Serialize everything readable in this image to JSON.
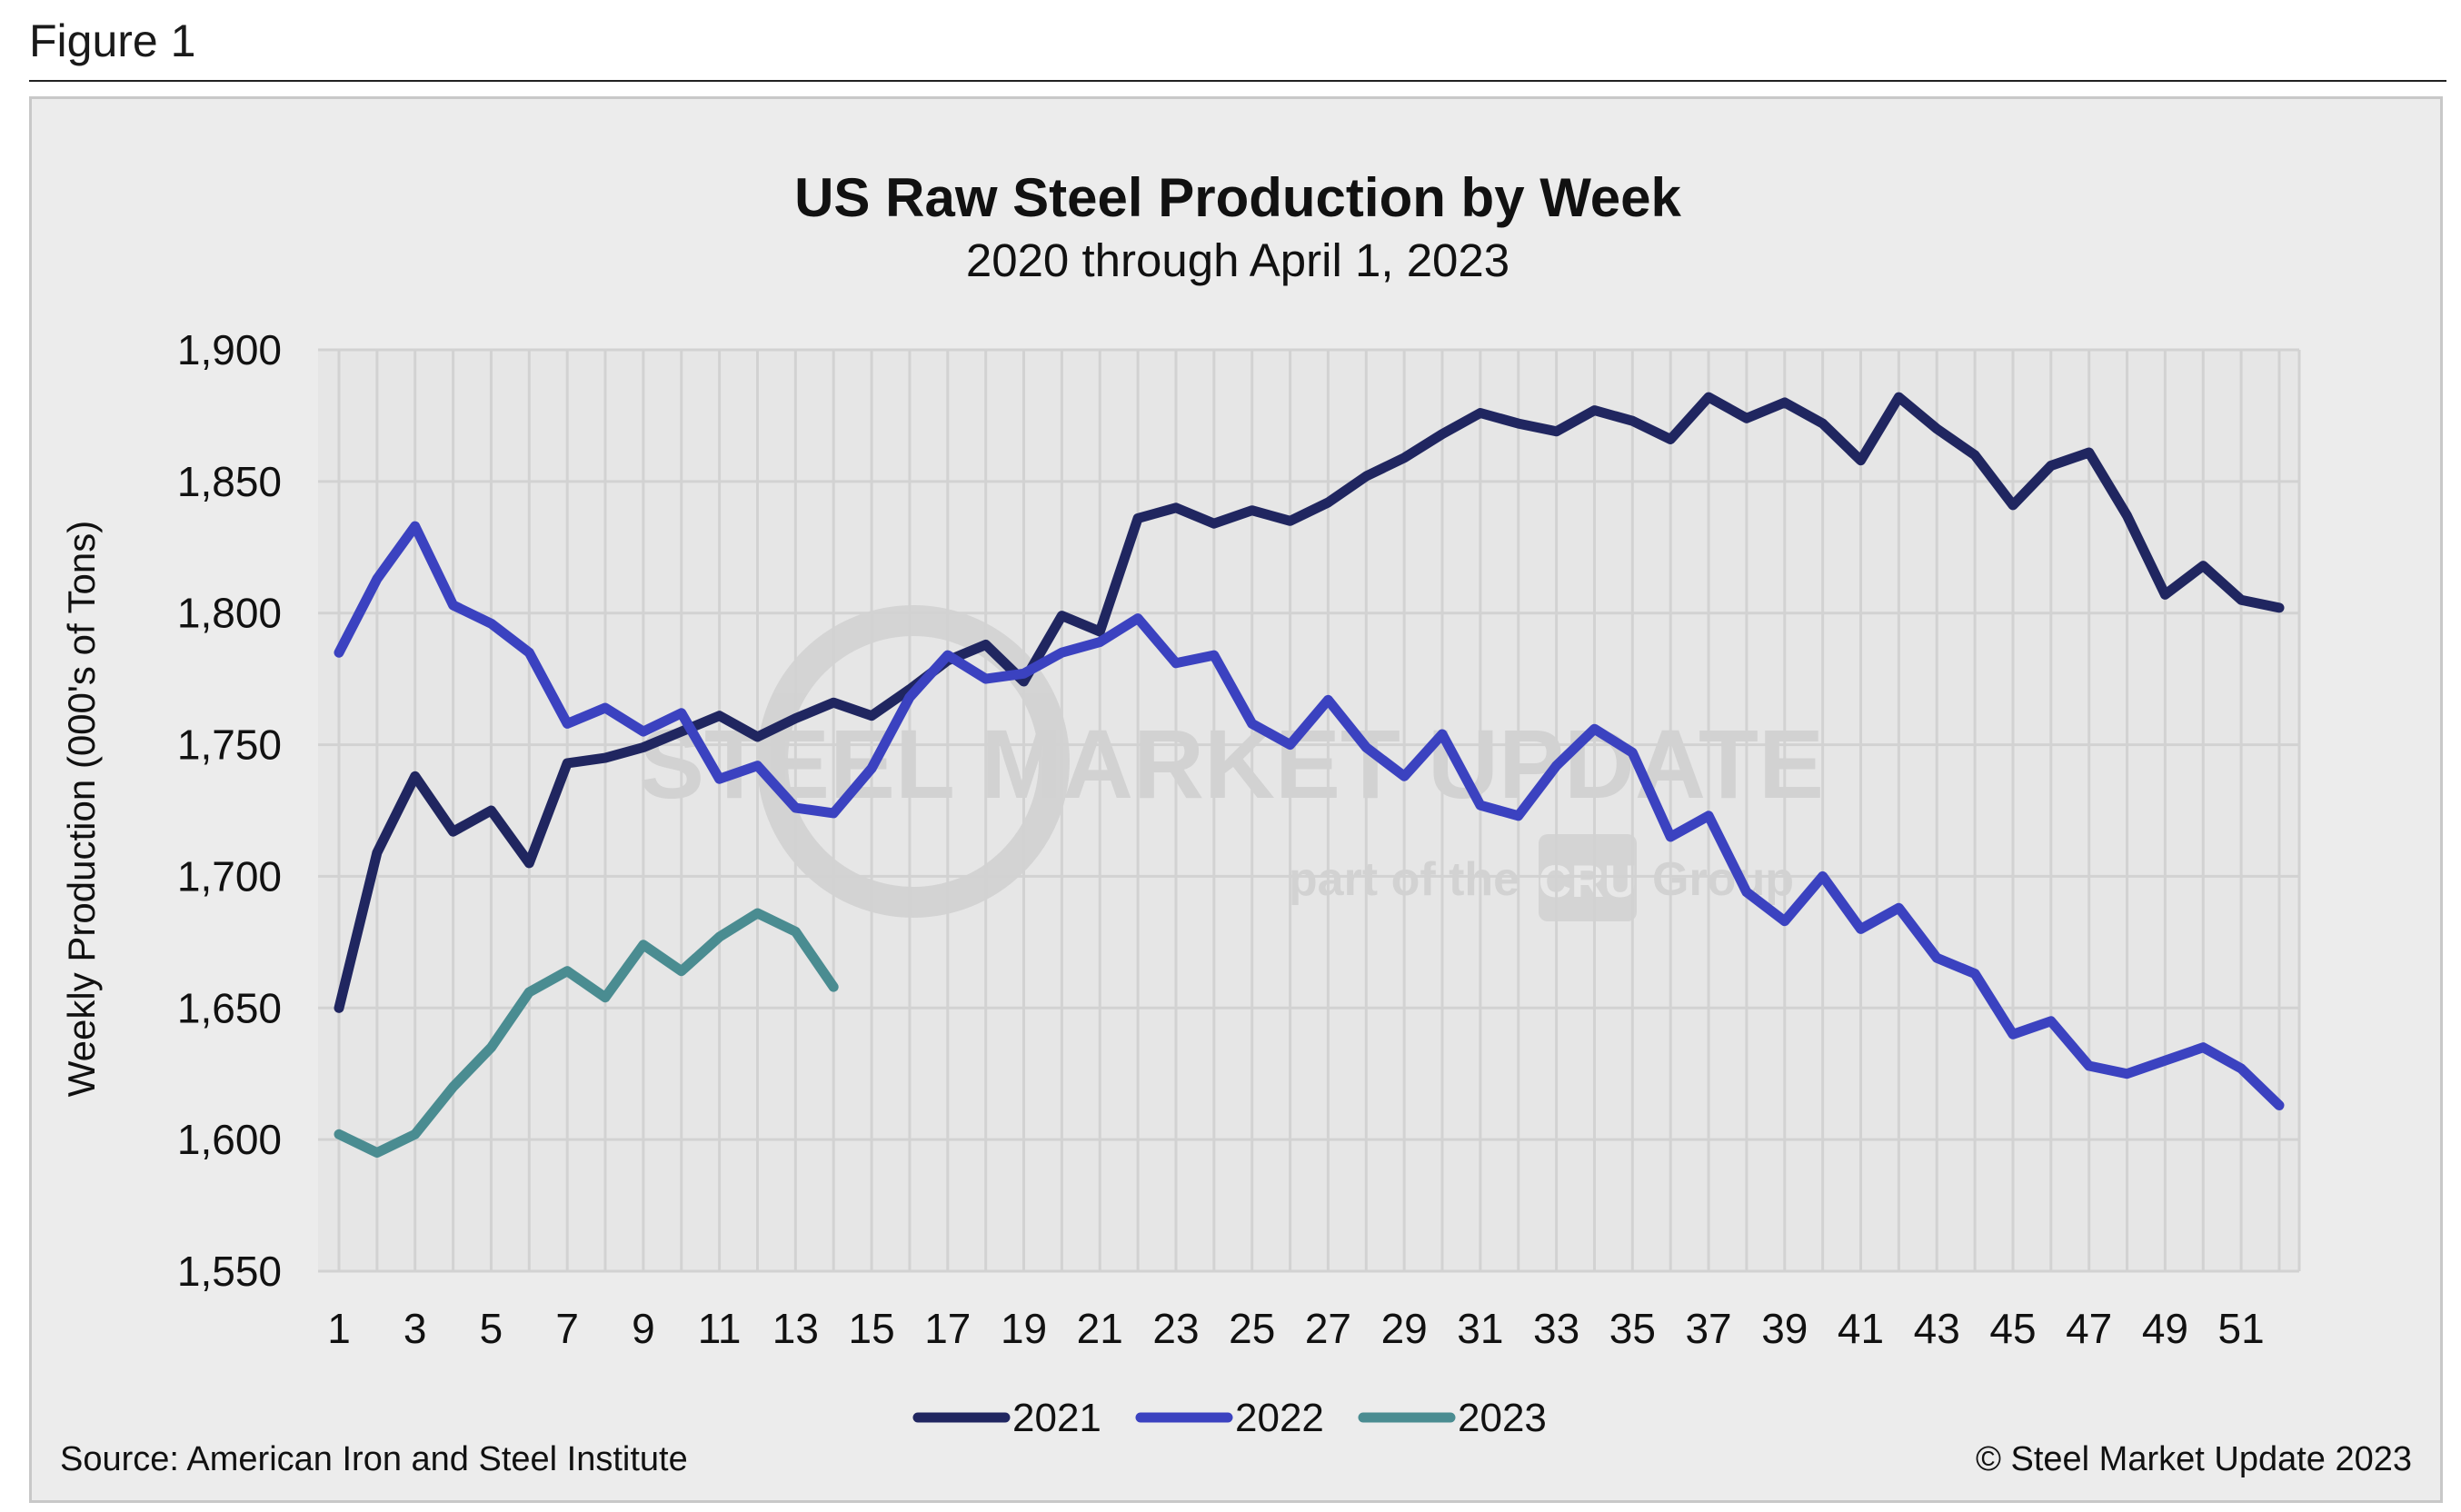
{
  "figure_label": "Figure 1",
  "watermark": {
    "brand": "STEEL MARKET UPDATE",
    "tagline_pre": "part of the",
    "logo": "CRU",
    "tagline_post": "Group"
  },
  "source_note": "Source: American Iron and Steel Institute",
  "copyright_note": "© Steel Market Update 2023",
  "colors": {
    "background": "#ececec",
    "plot_background": "#e6e6e6",
    "grid": "#d2d2d2"
  },
  "chart_data": {
    "type": "line",
    "title": "US Raw Steel Production by Week",
    "subtitle": "2020 through April 1, 2023",
    "xlabel": "",
    "ylabel": "Weekly Production (000's of Tons)",
    "ylim": [
      1550,
      1900
    ],
    "yticks": [
      "1,550",
      "1,600",
      "1,650",
      "1,700",
      "1,750",
      "1,800",
      "1,850",
      "1,900"
    ],
    "xlim": [
      1,
      52
    ],
    "xticks": [
      "1",
      "3",
      "5",
      "7",
      "9",
      "11",
      "13",
      "15",
      "17",
      "19",
      "21",
      "23",
      "25",
      "27",
      "29",
      "31",
      "33",
      "35",
      "37",
      "39",
      "41",
      "43",
      "45",
      "47",
      "49",
      "51"
    ],
    "grid": "vertical and horizontal",
    "legend_position": "bottom",
    "series": [
      {
        "name": "2021",
        "color": "#202660",
        "values": [
          1650,
          1709,
          1738,
          1717,
          1725,
          1705,
          1743,
          1745,
          1749,
          1755,
          1761,
          1753,
          1760,
          1766,
          1761,
          1771,
          1782,
          1788,
          1774,
          1799,
          1793,
          1836,
          1840,
          1834,
          1839,
          1835,
          1842,
          1852,
          1859,
          1868,
          1876,
          1872,
          1869,
          1877,
          1873,
          1866,
          1882,
          1874,
          1880,
          1872,
          1858,
          1882,
          1870,
          1860,
          1841,
          1856,
          1861,
          1837,
          1807,
          1818,
          1805,
          1802
        ]
      },
      {
        "name": "2022",
        "color": "#3b42c0",
        "values": [
          1785,
          1813,
          1833,
          1803,
          1796,
          1785,
          1758,
          1764,
          1755,
          1762,
          1737,
          1742,
          1726,
          1724,
          1741,
          1768,
          1784,
          1775,
          1777,
          1785,
          1789,
          1798,
          1781,
          1784,
          1758,
          1750,
          1767,
          1749,
          1738,
          1754,
          1727,
          1723,
          1742,
          1756,
          1747,
          1715,
          1723,
          1694,
          1683,
          1700,
          1680,
          1688,
          1669,
          1663,
          1640,
          1645,
          1628,
          1625,
          1630,
          1635,
          1627,
          1613
        ]
      },
      {
        "name": "2023",
        "color": "#4a8c91",
        "values": [
          1602,
          1595,
          1602,
          1620,
          1635,
          1656,
          1664,
          1654,
          1674,
          1664,
          1677,
          1686,
          1679,
          1658
        ]
      }
    ]
  }
}
